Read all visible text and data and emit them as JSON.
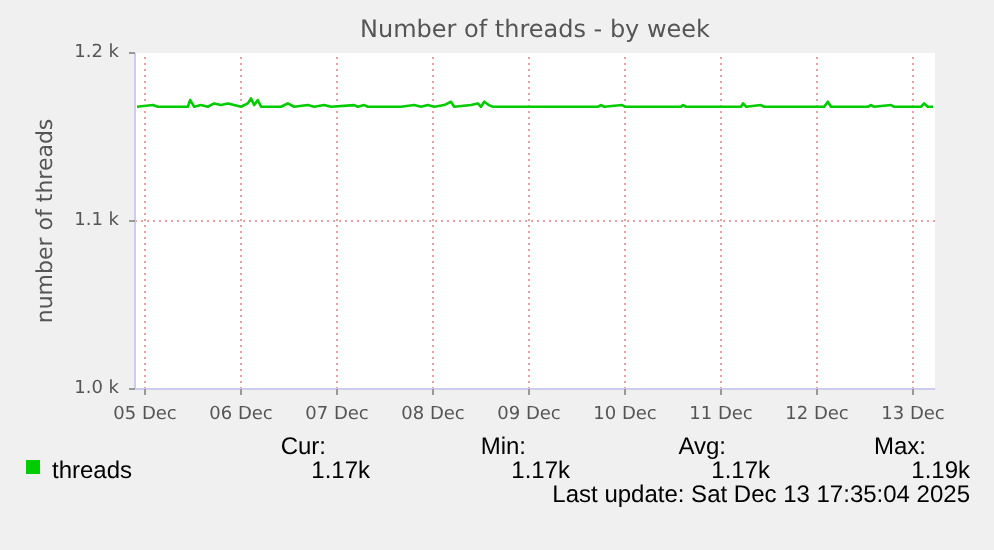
{
  "chart_data": {
    "type": "line",
    "title": "Number of threads - by week",
    "ylabel": "number of threads",
    "xlim": [
      "2025-12-05T09:30",
      "2025-12-13T17:30"
    ],
    "ylim": [
      1000,
      1200
    ],
    "xticks": [
      {
        "value": "2025-12-05T12:00",
        "label": "05 Dec"
      },
      {
        "value": "2025-12-06T12:00",
        "label": "06 Dec"
      },
      {
        "value": "2025-12-07T12:00",
        "label": "07 Dec"
      },
      {
        "value": "2025-12-08T12:00",
        "label": "08 Dec"
      },
      {
        "value": "2025-12-09T12:00",
        "label": "09 Dec"
      },
      {
        "value": "2025-12-10T12:00",
        "label": "10 Dec"
      },
      {
        "value": "2025-12-11T12:00",
        "label": "11 Dec"
      },
      {
        "value": "2025-12-12T12:00",
        "label": "12 Dec"
      },
      {
        "value": "2025-12-13T12:00",
        "label": "13 Dec"
      }
    ],
    "yticks": [
      {
        "value": 1000,
        "label": "1.0 k"
      },
      {
        "value": 1100,
        "label": "1.1 k"
      },
      {
        "value": 1200,
        "label": "1.2 k"
      }
    ],
    "grid": true,
    "legend": "bottom",
    "marker": "none",
    "line_style": "solid",
    "series": [
      {
        "name": "threads",
        "color": "#00cc00",
        "x": [
          "2025-12-05T10:00",
          "2025-12-05T14:00",
          "2025-12-05T15:12",
          "2025-12-05T22:42",
          "2025-12-05T23:18",
          "2025-12-06T00:18",
          "2025-12-06T02:00",
          "2025-12-06T03:42",
          "2025-12-06T05:18",
          "2025-12-06T07:00",
          "2025-12-06T08:42",
          "2025-12-06T10:18",
          "2025-12-06T12:00",
          "2025-12-06T13:42",
          "2025-12-06T14:30",
          "2025-12-06T15:18",
          "2025-12-06T16:12",
          "2025-12-06T17:00",
          "2025-12-06T22:00",
          "2025-12-06T23:42",
          "2025-12-07T01:18",
          "2025-12-07T04:42",
          "2025-12-07T06:18",
          "2025-12-07T08:48",
          "2025-12-07T10:30",
          "2025-12-07T16:18",
          "2025-12-07T17:12",
          "2025-12-07T18:48",
          "2025-12-07T19:42",
          "2025-12-08T04:00",
          "2025-12-08T07:18",
          "2025-12-08T09:00",
          "2025-12-08T10:42",
          "2025-12-08T12:18",
          "2025-12-08T14:48",
          "2025-12-08T16:30",
          "2025-12-08T17:18",
          "2025-12-08T21:30",
          "2025-12-08T23:12",
          "2025-12-09T00:00",
          "2025-12-09T00:48",
          "2025-12-09T02:00",
          "2025-12-09T03:00",
          "2025-12-10T05:12",
          "2025-12-10T06:00",
          "2025-12-10T06:48",
          "2025-12-10T11:18",
          "2025-12-10T12:00",
          "2025-12-11T02:00",
          "2025-12-11T02:30",
          "2025-12-11T03:18",
          "2025-12-11T17:00",
          "2025-12-11T17:30",
          "2025-12-11T18:18",
          "2025-12-11T22:00",
          "2025-12-11T22:48",
          "2025-12-12T13:48",
          "2025-12-12T14:42",
          "2025-12-12T15:30",
          "2025-12-12T18:00",
          "2025-12-13T00:42",
          "2025-12-13T01:30",
          "2025-12-13T02:18",
          "2025-12-13T06:30",
          "2025-12-13T07:18",
          "2025-12-13T14:00",
          "2025-12-13T14:48",
          "2025-12-13T15:42",
          "2025-12-13T17:00"
        ],
        "values": [
          1168,
          1169,
          1168,
          1168,
          1172,
          1168,
          1169,
          1168,
          1170,
          1169,
          1170,
          1169,
          1168,
          1170,
          1173,
          1169,
          1172,
          1168,
          1168,
          1170,
          1168,
          1169,
          1168,
          1169,
          1168,
          1169,
          1168,
          1169,
          1168,
          1168,
          1169,
          1168,
          1169,
          1168,
          1169,
          1171,
          1168,
          1169,
          1170,
          1168,
          1171,
          1169,
          1168,
          1168,
          1169,
          1168,
          1169,
          1168,
          1168,
          1169,
          1168,
          1168,
          1170,
          1168,
          1169,
          1168,
          1168,
          1171,
          1168,
          1168,
          1168,
          1169,
          1168,
          1169,
          1168,
          1168,
          1170,
          1168,
          1168
        ]
      }
    ],
    "annotations": [
      "Cur:",
      "Min:",
      "Avg:",
      "Max:",
      "1.17k",
      "1.17k",
      "1.17k",
      "1.19k",
      "Last update: Sat Dec 13 17:35:04 2025"
    ]
  }
}
